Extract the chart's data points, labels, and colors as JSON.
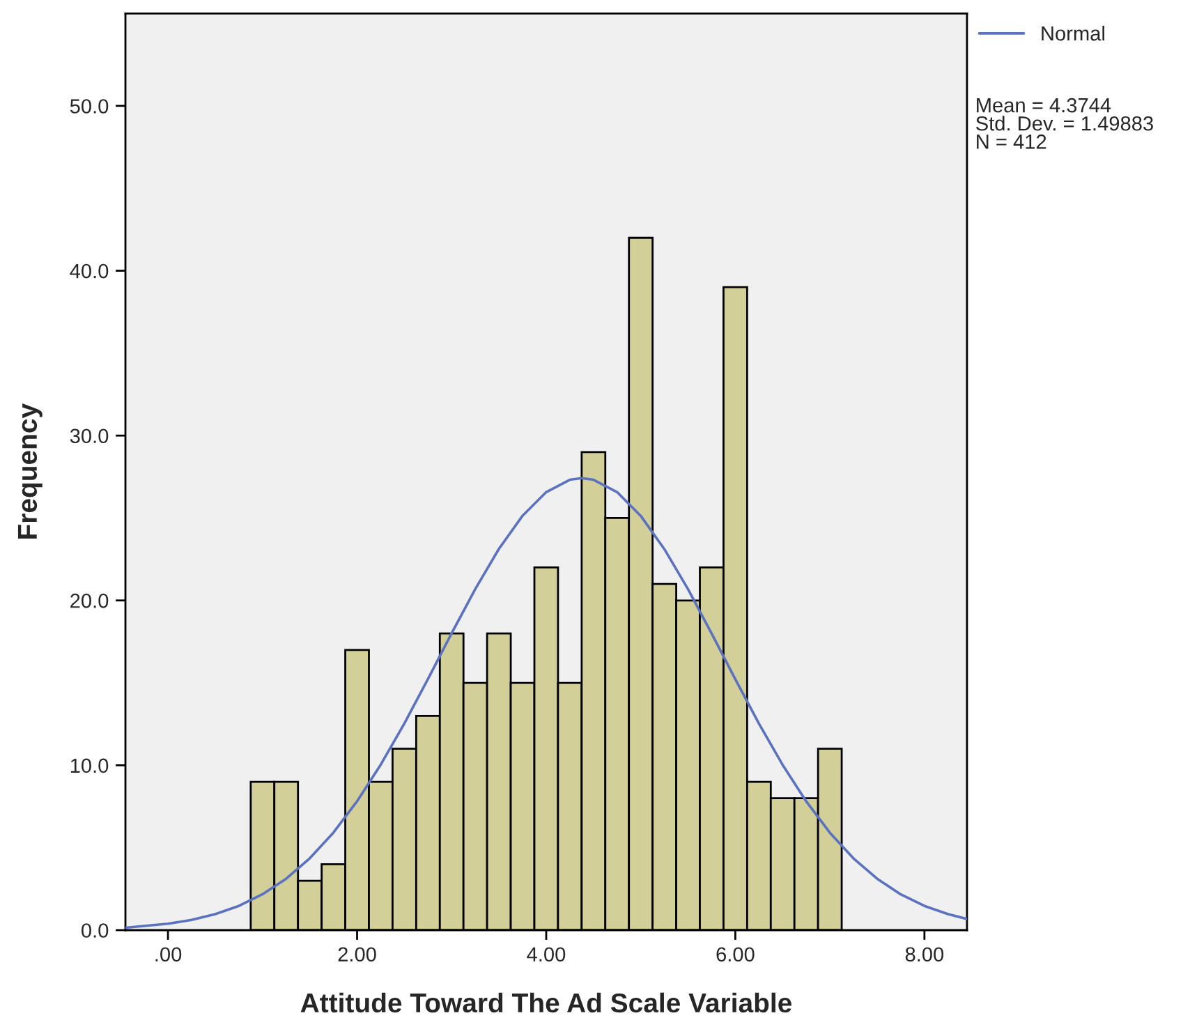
{
  "chart_data": {
    "type": "histogram",
    "xlabel": "Attitude Toward The Ad Scale Variable",
    "ylabel": "Frequency",
    "series": [
      {
        "color": "#d3cf98",
        "bins": [
          0.875,
          1.125,
          1.375,
          1.625,
          1.875,
          2.125,
          2.375,
          2.625,
          2.875,
          3.125,
          3.375,
          3.625,
          3.875,
          4.125,
          4.375,
          4.625,
          4.875,
          5.125,
          5.375,
          5.625,
          5.875,
          6.125,
          6.375,
          6.625,
          6.875,
          7.125
        ],
        "values": [
          9,
          9,
          3,
          4,
          17,
          9,
          11,
          13,
          18,
          15,
          18,
          15,
          22,
          15,
          29,
          25,
          42,
          21,
          20,
          22,
          39,
          9,
          8,
          8,
          11
        ]
      },
      {
        "type": "line",
        "name": "Normal",
        "color": "#5a72c0",
        "x": [
          -0.45,
          0,
          0.25,
          0.5,
          0.75,
          1,
          1.25,
          1.5,
          1.75,
          2,
          2.25,
          2.5,
          2.75,
          3,
          3.25,
          3.5,
          3.75,
          4,
          4.25,
          4.3744,
          4.5,
          4.75,
          5,
          5.25,
          5.5,
          5.75,
          6,
          6.25,
          6.5,
          6.75,
          7,
          7.25,
          7.5,
          7.75,
          8,
          8.25,
          8.45
        ],
        "values": [
          0.15,
          0.39,
          0.62,
          0.97,
          1.47,
          2.18,
          3.12,
          4.36,
          5.92,
          7.82,
          10.04,
          12.54,
          15.24,
          18.01,
          20.69,
          23.13,
          25.14,
          26.57,
          27.32,
          27.42,
          27.32,
          26.57,
          25.13,
          23.11,
          20.68,
          17.99,
          15.22,
          12.53,
          10.03,
          7.81,
          5.91,
          4.35,
          3.12,
          2.17,
          1.47,
          0.97,
          0.68
        ]
      }
    ],
    "xlim": [
      -0.45,
      8.45
    ],
    "xticks": [
      {
        "value": 0,
        "label": ".00"
      },
      {
        "value": 2,
        "label": "2.00"
      },
      {
        "value": 4,
        "label": "4.00"
      },
      {
        "value": 6,
        "label": "6.00"
      },
      {
        "value": 8,
        "label": "8.00"
      }
    ],
    "ylim": [
      0,
      55.6
    ],
    "yticks": [
      {
        "value": 0,
        "label": "0.0"
      },
      {
        "value": 10,
        "label": "10.0"
      },
      {
        "value": 20,
        "label": "20.0"
      },
      {
        "value": 30,
        "label": "30.0"
      },
      {
        "value": 40,
        "label": "40.0"
      },
      {
        "value": 50,
        "label": "50.0"
      }
    ],
    "legend": "top right",
    "annotations": [
      "Mean = 4.3744\nStd. Dev. = 1.49883\nN = 412"
    ]
  }
}
